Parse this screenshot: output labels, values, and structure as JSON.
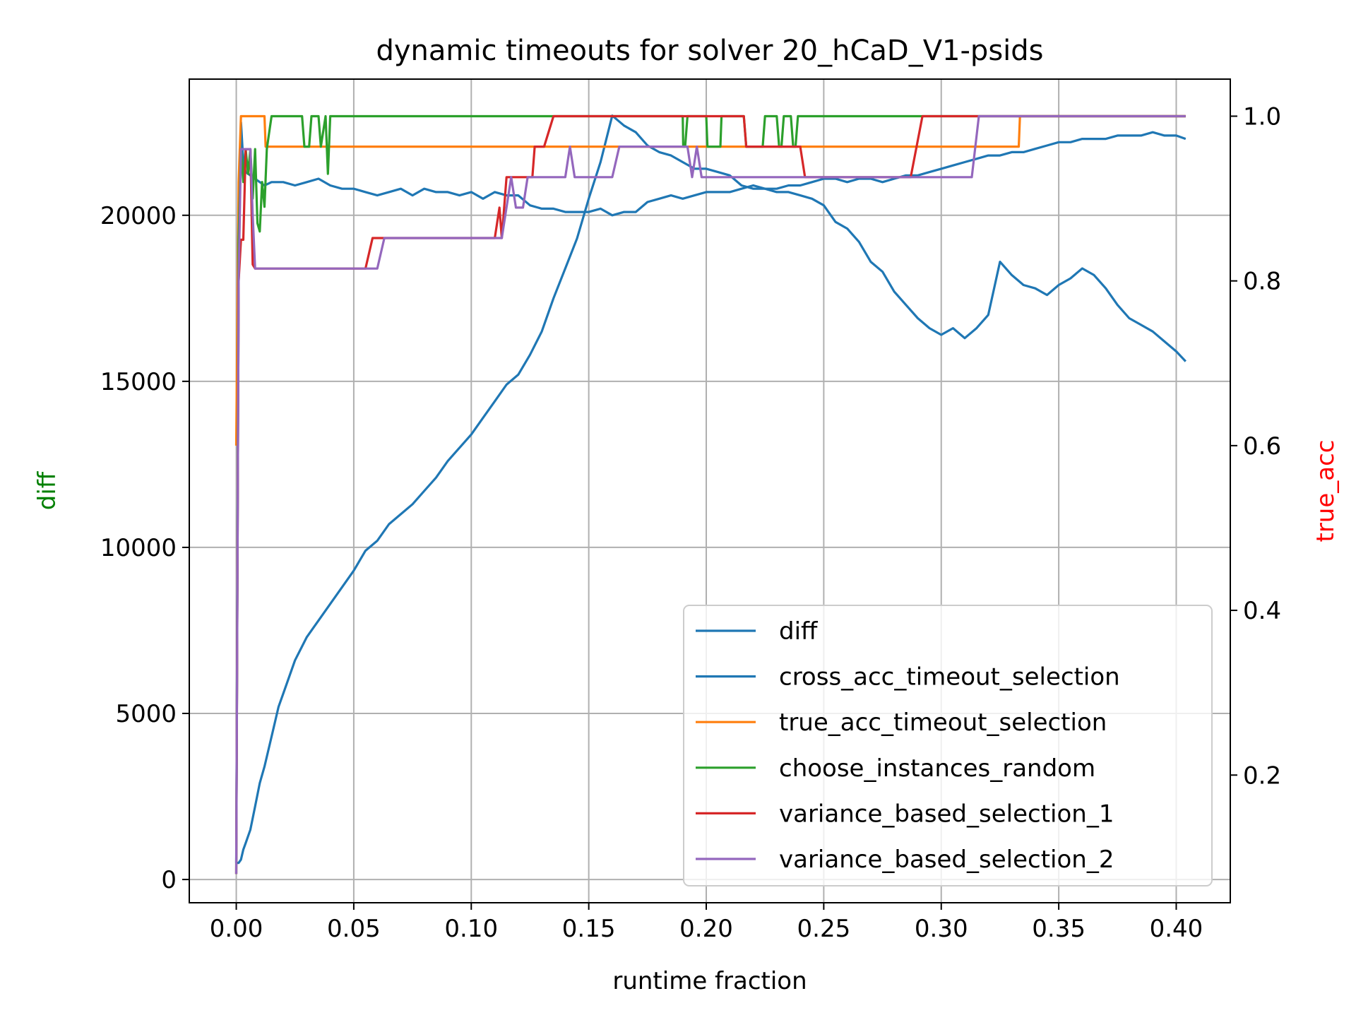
{
  "chart_data": {
    "type": "line",
    "title": "dynamic timeouts for solver 20_hCaD_V1-psids",
    "xlabel": "runtime fraction",
    "ylabel_left": "diff",
    "ylabel_right": "true_acc",
    "ylabel_left_color": "#008000",
    "ylabel_right_color": "#ff0000",
    "xlim": [
      -0.02,
      0.423
    ],
    "ylim_left": [
      -700,
      24100
    ],
    "ylim_right": [
      0.045,
      1.045
    ],
    "xticks": [
      0.0,
      0.05,
      0.1,
      0.15,
      0.2,
      0.25,
      0.3,
      0.35,
      0.4
    ],
    "xtick_labels": [
      "0.00",
      "0.05",
      "0.10",
      "0.15",
      "0.20",
      "0.25",
      "0.30",
      "0.35",
      "0.40"
    ],
    "yticks_left": [
      0,
      5000,
      10000,
      15000,
      20000
    ],
    "ytick_labels_left": [
      "0",
      "5000",
      "10000",
      "15000",
      "20000"
    ],
    "yticks_right": [
      0.2,
      0.4,
      0.6,
      0.8,
      1.0
    ],
    "ytick_labels_right": [
      "0.2",
      "0.4",
      "0.6",
      "0.8",
      "1.0"
    ],
    "grid": true,
    "legend_position": "lower-right",
    "series": [
      {
        "name": "diff",
        "axis": "left",
        "color": "#1f77b4",
        "x": [
          0.0,
          0.001,
          0.002,
          0.003,
          0.004,
          0.005,
          0.006,
          0.008,
          0.01,
          0.012,
          0.015,
          0.018,
          0.02,
          0.025,
          0.03,
          0.035,
          0.04,
          0.045,
          0.05,
          0.055,
          0.06,
          0.065,
          0.07,
          0.075,
          0.08,
          0.085,
          0.09,
          0.095,
          0.1,
          0.105,
          0.11,
          0.115,
          0.12,
          0.125,
          0.13,
          0.135,
          0.14,
          0.145,
          0.15,
          0.155,
          0.16,
          0.165,
          0.17,
          0.175,
          0.18,
          0.185,
          0.19,
          0.195,
          0.2,
          0.205,
          0.21,
          0.215,
          0.22,
          0.225,
          0.23,
          0.235,
          0.24,
          0.245,
          0.25,
          0.255,
          0.26,
          0.265,
          0.27,
          0.275,
          0.28,
          0.285,
          0.29,
          0.295,
          0.3,
          0.305,
          0.31,
          0.315,
          0.32,
          0.325,
          0.33,
          0.335,
          0.34,
          0.345,
          0.35,
          0.355,
          0.36,
          0.365,
          0.37,
          0.375,
          0.38,
          0.385,
          0.39,
          0.395,
          0.4,
          0.404
        ],
        "values": [
          500,
          500,
          600,
          900,
          1100,
          1300,
          1500,
          2200,
          2900,
          3400,
          4300,
          5200,
          5600,
          6600,
          7300,
          7800,
          8300,
          8800,
          9300,
          9900,
          10200,
          10700,
          11000,
          11300,
          11700,
          12100,
          12600,
          13000,
          13400,
          13900,
          14400,
          14900,
          15200,
          15800,
          16500,
          17500,
          18400,
          19300,
          20500,
          21600,
          23000,
          22700,
          22500,
          22100,
          21900,
          21800,
          21600,
          21400,
          21400,
          21300,
          21200,
          20900,
          20800,
          20800,
          20700,
          20700,
          20600,
          20500,
          20300,
          19800,
          19600,
          19200,
          18600,
          18300,
          17700,
          17300,
          16900,
          16600,
          16400,
          16600,
          16300,
          16600,
          17000,
          18600,
          18200,
          17900,
          17800,
          17600,
          17900,
          18100,
          18400,
          18200,
          17800,
          17300,
          16900,
          16700,
          16500,
          16200,
          15900,
          15600
        ]
      },
      {
        "name": "cross_acc_timeout_selection",
        "axis": "left",
        "color": "#1f77b4",
        "x": [
          0.0,
          0.001,
          0.002,
          0.003,
          0.004,
          0.006,
          0.008,
          0.01,
          0.012,
          0.015,
          0.02,
          0.025,
          0.03,
          0.035,
          0.04,
          0.045,
          0.05,
          0.055,
          0.06,
          0.065,
          0.07,
          0.075,
          0.08,
          0.085,
          0.09,
          0.095,
          0.1,
          0.105,
          0.11,
          0.115,
          0.12,
          0.125,
          0.13,
          0.135,
          0.14,
          0.145,
          0.15,
          0.155,
          0.16,
          0.165,
          0.17,
          0.175,
          0.18,
          0.185,
          0.19,
          0.195,
          0.2,
          0.205,
          0.21,
          0.215,
          0.22,
          0.225,
          0.23,
          0.235,
          0.24,
          0.245,
          0.25,
          0.255,
          0.26,
          0.265,
          0.27,
          0.275,
          0.28,
          0.285,
          0.29,
          0.295,
          0.3,
          0.305,
          0.31,
          0.315,
          0.32,
          0.325,
          0.33,
          0.335,
          0.34,
          0.345,
          0.35,
          0.355,
          0.36,
          0.365,
          0.37,
          0.375,
          0.38,
          0.385,
          0.39,
          0.395,
          0.4,
          0.404
        ],
        "values": [
          500,
          18000,
          22800,
          21600,
          21300,
          21200,
          21100,
          21000,
          20900,
          21000,
          21000,
          20900,
          21000,
          21100,
          20900,
          20800,
          20800,
          20700,
          20600,
          20700,
          20800,
          20600,
          20800,
          20700,
          20700,
          20600,
          20700,
          20500,
          20700,
          20600,
          20600,
          20300,
          20200,
          20200,
          20100,
          20100,
          20100,
          20200,
          20000,
          20100,
          20100,
          20400,
          20500,
          20600,
          20500,
          20600,
          20700,
          20700,
          20700,
          20800,
          20900,
          20800,
          20800,
          20900,
          20900,
          21000,
          21100,
          21100,
          21000,
          21100,
          21100,
          21000,
          21100,
          21200,
          21200,
          21300,
          21400,
          21500,
          21600,
          21700,
          21800,
          21800,
          21900,
          21900,
          22000,
          22100,
          22200,
          22200,
          22300,
          22300,
          22300,
          22400,
          22400,
          22400,
          22500,
          22400,
          22400,
          22300
        ]
      },
      {
        "name": "true_acc_timeout_selection",
        "axis": "right",
        "color": "#ff7f0e",
        "x": [
          0.0,
          0.001,
          0.002,
          0.012,
          0.0125,
          0.333,
          0.3335,
          0.404
        ],
        "values": [
          0.6,
          0.92,
          1.0,
          1.0,
          0.963,
          0.963,
          1.0,
          1.0
        ]
      },
      {
        "name": "choose_instances_random",
        "axis": "right",
        "color": "#2ca02c",
        "x": [
          0.0,
          0.001,
          0.002,
          0.003,
          0.004,
          0.005,
          0.006,
          0.007,
          0.008,
          0.009,
          0.01,
          0.011,
          0.012,
          0.013,
          0.014,
          0.015,
          0.028,
          0.029,
          0.031,
          0.032,
          0.035,
          0.036,
          0.038,
          0.039,
          0.04,
          0.19,
          0.1902,
          0.191,
          0.192,
          0.2,
          0.2005,
          0.206,
          0.2065,
          0.216,
          0.217,
          0.224,
          0.225,
          0.23,
          0.231,
          0.232,
          0.233,
          0.236,
          0.237,
          0.238,
          0.239,
          0.404
        ],
        "values": [
          0.08,
          0.85,
          0.96,
          0.92,
          0.96,
          0.93,
          0.96,
          0.9,
          0.96,
          0.87,
          0.86,
          0.92,
          0.89,
          0.96,
          0.98,
          1.0,
          1.0,
          0.963,
          0.963,
          1.0,
          1.0,
          0.963,
          1.0,
          0.93,
          1.0,
          1.0,
          0.963,
          0.963,
          1.0,
          1.0,
          0.963,
          0.963,
          1.0,
          1.0,
          0.963,
          0.963,
          1.0,
          1.0,
          0.963,
          0.963,
          1.0,
          1.0,
          0.963,
          0.963,
          1.0,
          1.0
        ]
      },
      {
        "name": "variance_based_selection_1",
        "axis": "right",
        "color": "#d62728",
        "x": [
          0.0,
          0.001,
          0.002,
          0.003,
          0.004,
          0.005,
          0.006,
          0.007,
          0.008,
          0.055,
          0.058,
          0.062,
          0.065,
          0.11,
          0.112,
          0.113,
          0.115,
          0.118,
          0.126,
          0.127,
          0.131,
          0.135,
          0.216,
          0.217,
          0.24,
          0.242,
          0.287,
          0.292,
          0.32,
          0.404
        ],
        "values": [
          0.08,
          0.8,
          0.85,
          0.85,
          0.96,
          0.96,
          0.96,
          0.82,
          0.815,
          0.815,
          0.852,
          0.852,
          0.852,
          0.852,
          0.889,
          0.852,
          0.926,
          0.926,
          0.926,
          0.963,
          0.963,
          1.0,
          1.0,
          0.963,
          0.963,
          0.926,
          0.926,
          1.0,
          1.0,
          1.0
        ]
      },
      {
        "name": "variance_based_selection_2",
        "axis": "right",
        "color": "#9467bd",
        "x": [
          0.0,
          0.001,
          0.002,
          0.003,
          0.004,
          0.005,
          0.006,
          0.007,
          0.008,
          0.06,
          0.063,
          0.065,
          0.11,
          0.113,
          0.117,
          0.119,
          0.122,
          0.124,
          0.126,
          0.14,
          0.142,
          0.144,
          0.16,
          0.163,
          0.192,
          0.194,
          0.196,
          0.198,
          0.31,
          0.313,
          0.316,
          0.404
        ],
        "values": [
          0.08,
          0.8,
          0.96,
          0.96,
          0.96,
          0.96,
          0.96,
          0.88,
          0.815,
          0.815,
          0.852,
          0.852,
          0.852,
          0.852,
          0.926,
          0.889,
          0.889,
          0.926,
          0.926,
          0.926,
          0.963,
          0.926,
          0.926,
          0.963,
          0.963,
          0.926,
          0.963,
          0.926,
          0.926,
          0.926,
          1.0,
          1.0
        ]
      }
    ]
  }
}
